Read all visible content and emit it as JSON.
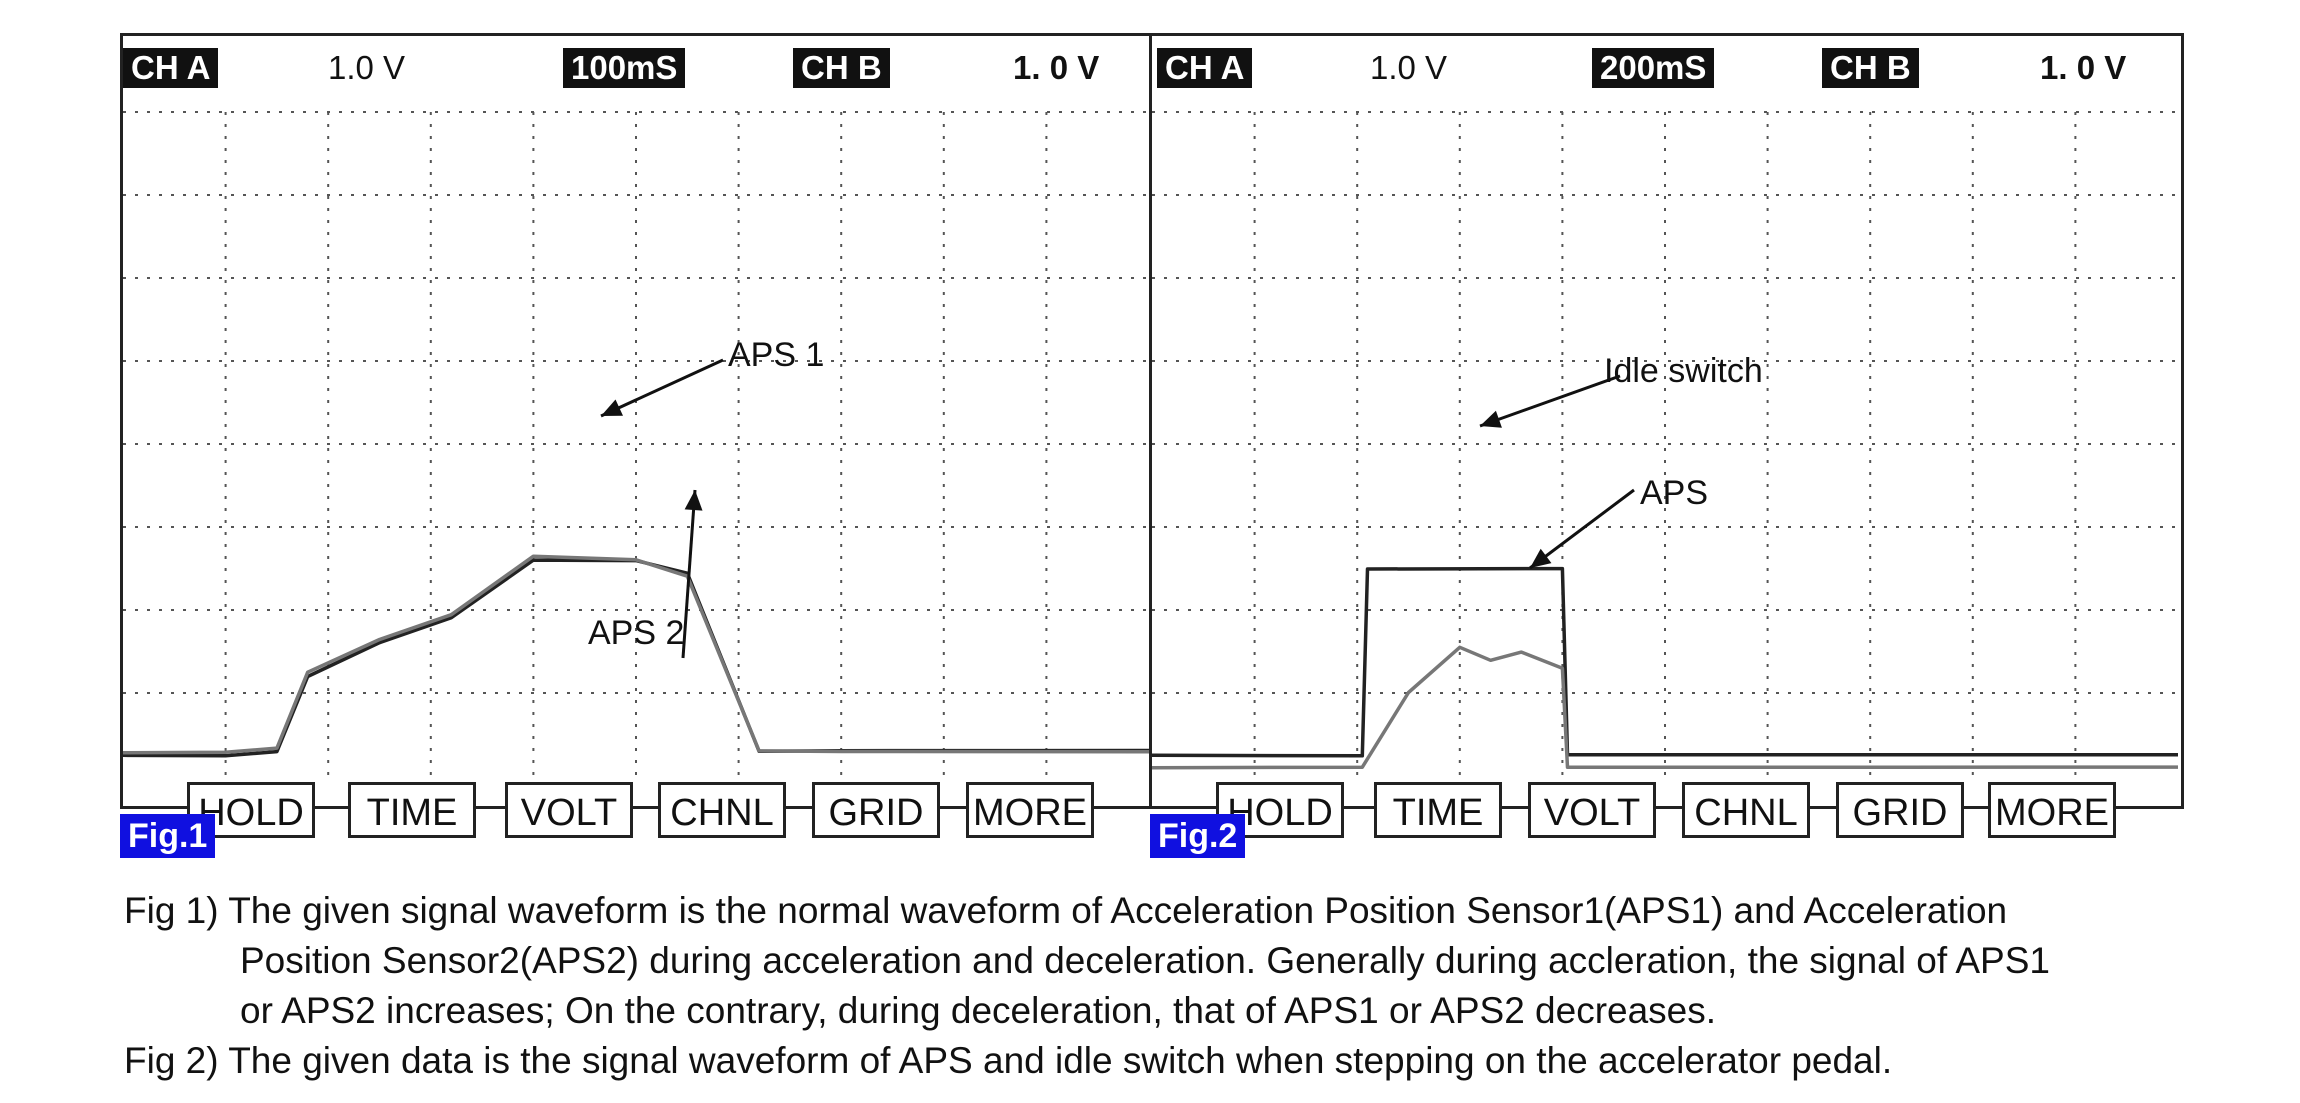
{
  "scopes": [
    {
      "ch_a_label": "CH A",
      "ch_a_scale": "1.0 V",
      "timebase": "100mS",
      "ch_b_label": "CH B",
      "ch_b_scale": "1. 0  V",
      "buttons": [
        "HOLD",
        "TIME",
        "VOLT",
        "CHNL",
        "GRID",
        "MORE"
      ],
      "fig_label": "Fig.1",
      "annotations": [
        "APS 1",
        "APS 2"
      ]
    },
    {
      "ch_a_label": "CH A",
      "ch_a_scale": "1.0 V",
      "timebase": "200mS",
      "ch_b_label": "CH B",
      "ch_b_scale": "1. 0  V",
      "buttons": [
        "HOLD",
        "TIME",
        "VOLT",
        "CHNL",
        "GRID",
        "MORE"
      ],
      "fig_label": "Fig.2",
      "annotations": [
        "Idle switch",
        "APS"
      ]
    }
  ],
  "captions": [
    "Fig 1) The given signal waveform is the normal waveform of  Acceleration Position Sensor1(APS1) and Acceleration",
    "Position Sensor2(APS2) during acceleration and deceleration. Generally during accleration, the signal of APS1",
    "or APS2 increases; On the contrary, during deceleration, that of APS1 or APS2 decreases.",
    "Fig 2) The given data is the signal waveform of APS and idle switch when stepping on the accelerator pedal."
  ],
  "colors": {
    "trace_dark": "#222222",
    "trace_gray": "#777777",
    "fig_label_bg": "#1010e0",
    "grid": "#555555"
  },
  "chart_data": [
    {
      "type": "line",
      "divisions_x": 10,
      "divisions_y": 8,
      "grid": true,
      "series": [
        {
          "name": "APS 1",
          "x": [
            0,
            1.0,
            1.5,
            1.8,
            2.5,
            3.2,
            4.0,
            5.0,
            5.5,
            6.2,
            7.0,
            10.0
          ],
          "y": [
            0.25,
            0.25,
            0.3,
            1.2,
            1.6,
            1.9,
            2.6,
            2.6,
            2.45,
            0.3,
            0.3,
            0.3
          ]
        },
        {
          "name": "APS 2",
          "x": [
            0,
            1.0,
            1.5,
            1.8,
            2.5,
            3.2,
            4.0,
            5.0,
            5.5,
            6.2,
            7.0,
            10.0
          ],
          "y": [
            0.28,
            0.28,
            0.33,
            1.25,
            1.65,
            1.95,
            2.65,
            2.6,
            2.4,
            0.3,
            0.3,
            0.3
          ]
        }
      ]
    },
    {
      "type": "line",
      "divisions_x": 10,
      "divisions_y": 8,
      "grid": true,
      "series": [
        {
          "name": "Idle switch",
          "x": [
            0,
            2.05,
            2.1,
            4.0,
            4.05,
            10.0
          ],
          "y": [
            0.25,
            0.25,
            2.5,
            2.5,
            0.25,
            0.25
          ]
        },
        {
          "name": "APS",
          "x": [
            0,
            2.05,
            2.5,
            3.0,
            3.3,
            3.6,
            4.0,
            4.05,
            10.0
          ],
          "y": [
            0.1,
            0.1,
            1.0,
            1.55,
            1.4,
            1.5,
            1.3,
            0.1,
            0.1
          ]
        }
      ]
    }
  ]
}
